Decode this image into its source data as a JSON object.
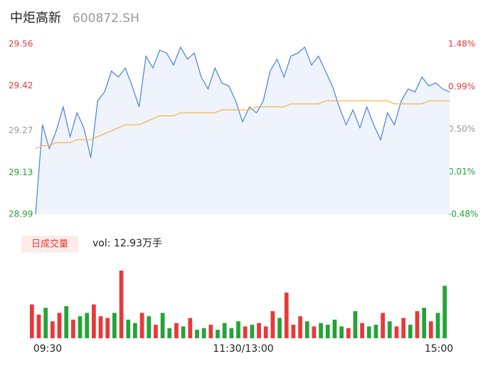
{
  "chart_data": {
    "type": "line",
    "title": "中炬高新",
    "subtitle": "600872.SH",
    "ylim": [
      28.99,
      29.56
    ],
    "yticks": [
      29.56,
      29.42,
      29.27,
      29.13,
      28.99
    ],
    "y2lim": [
      -0.48,
      1.48
    ],
    "y2ticks": [
      {
        "value": 1.48,
        "label": "1.48%"
      },
      {
        "value": 0.99,
        "label": "0.99%"
      },
      {
        "value": 0.5,
        "label": "0.50%"
      },
      {
        "value": 0.01,
        "label": "0.01%"
      },
      {
        "value": -0.48,
        "label": "-0.48%"
      }
    ],
    "time_labels": [
      "09:30",
      "11:30/13:00",
      "15:00"
    ],
    "series": [
      {
        "name": "price",
        "color": "#4a7fe0",
        "values": [
          28.99,
          29.29,
          29.21,
          29.27,
          29.35,
          29.25,
          29.33,
          29.28,
          29.18,
          29.37,
          29.4,
          29.47,
          29.45,
          29.48,
          29.42,
          29.35,
          29.52,
          29.48,
          29.54,
          29.53,
          29.49,
          29.55,
          29.51,
          29.53,
          29.45,
          29.41,
          29.48,
          29.43,
          29.42,
          29.37,
          29.3,
          29.35,
          29.33,
          29.37,
          29.47,
          29.51,
          29.45,
          29.52,
          29.53,
          29.55,
          29.49,
          29.52,
          29.47,
          29.42,
          29.35,
          29.29,
          29.34,
          29.28,
          29.35,
          29.29,
          29.24,
          29.33,
          29.29,
          29.37,
          29.41,
          29.4,
          29.45,
          29.42,
          29.43,
          29.41,
          29.4
        ]
      },
      {
        "name": "average",
        "color": "#f2b33d",
        "values": [
          29.21,
          29.22,
          29.22,
          29.23,
          29.23,
          29.23,
          29.24,
          29.24,
          29.24,
          29.25,
          29.26,
          29.27,
          29.28,
          29.29,
          29.29,
          29.29,
          29.3,
          29.31,
          29.32,
          29.32,
          29.32,
          29.33,
          29.33,
          29.33,
          29.33,
          29.33,
          29.33,
          29.34,
          29.34,
          29.34,
          29.34,
          29.34,
          29.35,
          29.35,
          29.35,
          29.35,
          29.35,
          29.36,
          29.36,
          29.36,
          29.36,
          29.36,
          29.37,
          29.37,
          29.37,
          29.37,
          29.37,
          29.37,
          29.37,
          29.37,
          29.37,
          29.37,
          29.36,
          29.36,
          29.36,
          29.36,
          29.36,
          29.37,
          29.37,
          29.37,
          29.37
        ]
      }
    ],
    "volume": {
      "legend": "日成交量",
      "label": "vol: 12.93万手",
      "ylim": [
        0,
        4000
      ],
      "up_color": "#e8393a",
      "down_color": "#25a33a",
      "values": [
        2000,
        1400,
        1800,
        1000,
        1500,
        1900,
        1100,
        1300,
        1500,
        2000,
        1300,
        1200,
        1500,
        4000,
        1100,
        900,
        1500,
        1300,
        800,
        1500,
        600,
        900,
        700,
        1200,
        500,
        600,
        800,
        500,
        900,
        600,
        1000,
        700,
        800,
        900,
        700,
        1600,
        1200,
        2700,
        800,
        1300,
        1000,
        700,
        900,
        800,
        1100,
        700,
        600,
        1600,
        900,
        700,
        800,
        1500,
        1000,
        700,
        1200,
        800,
        1600,
        1800,
        1000,
        1500,
        3100
      ]
    },
    "up_color": "#e8393a",
    "down_color": "#25a33a",
    "neutral_color": "#999999"
  }
}
